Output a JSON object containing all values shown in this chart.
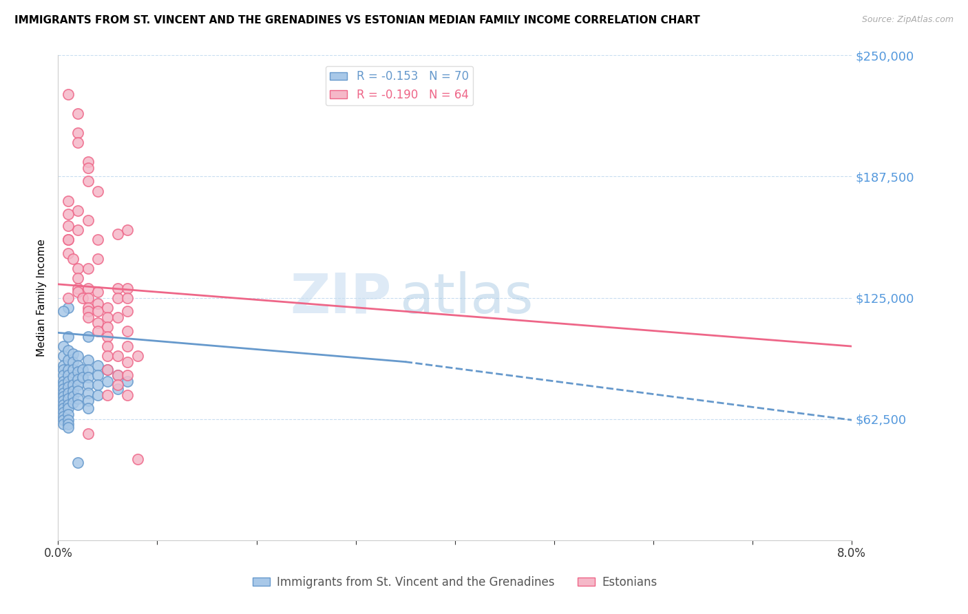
{
  "title": "IMMIGRANTS FROM ST. VINCENT AND THE GRENADINES VS ESTONIAN MEDIAN FAMILY INCOME CORRELATION CHART",
  "source": "Source: ZipAtlas.com",
  "ylabel": "Median Family Income",
  "xlim": [
    0.0,
    0.08
  ],
  "ylim": [
    0,
    250000
  ],
  "yticks": [
    0,
    62500,
    125000,
    187500,
    250000
  ],
  "ytick_labels": [
    "",
    "$62,500",
    "$125,000",
    "$187,500",
    "$250,000"
  ],
  "xticks": [
    0.0,
    0.01,
    0.02,
    0.03,
    0.04,
    0.05,
    0.06,
    0.07,
    0.08
  ],
  "xtick_labels": [
    "0.0%",
    "",
    "",
    "",
    "",
    "",
    "",
    "",
    "8.0%"
  ],
  "legend_blue_r": "R = -0.153",
  "legend_blue_n": "N = 70",
  "legend_pink_r": "R = -0.190",
  "legend_pink_n": "N = 64",
  "watermark_zip": "ZIP",
  "watermark_atlas": "atlas",
  "blue_color": "#a8c8e8",
  "pink_color": "#f5b8c8",
  "line_blue_color": "#6699cc",
  "line_pink_color": "#ee6688",
  "axis_label_color": "#5599dd",
  "blue_scatter": [
    [
      0.0005,
      100000
    ],
    [
      0.0005,
      95000
    ],
    [
      0.0005,
      90000
    ],
    [
      0.0005,
      88000
    ],
    [
      0.0005,
      85000
    ],
    [
      0.0005,
      82000
    ],
    [
      0.0005,
      80000
    ],
    [
      0.0005,
      78000
    ],
    [
      0.0005,
      76000
    ],
    [
      0.0005,
      74000
    ],
    [
      0.0005,
      72000
    ],
    [
      0.0005,
      70000
    ],
    [
      0.0005,
      68000
    ],
    [
      0.0005,
      66000
    ],
    [
      0.0005,
      64000
    ],
    [
      0.0005,
      62000
    ],
    [
      0.0005,
      60000
    ],
    [
      0.001,
      105000
    ],
    [
      0.001,
      98000
    ],
    [
      0.001,
      93000
    ],
    [
      0.001,
      88000
    ],
    [
      0.001,
      85000
    ],
    [
      0.001,
      82000
    ],
    [
      0.001,
      79000
    ],
    [
      0.001,
      76000
    ],
    [
      0.001,
      73000
    ],
    [
      0.001,
      70000
    ],
    [
      0.001,
      68000
    ],
    [
      0.001,
      65000
    ],
    [
      0.001,
      62000
    ],
    [
      0.001,
      60000
    ],
    [
      0.001,
      58000
    ],
    [
      0.0015,
      96000
    ],
    [
      0.0015,
      92000
    ],
    [
      0.0015,
      88000
    ],
    [
      0.0015,
      84000
    ],
    [
      0.0015,
      80000
    ],
    [
      0.0015,
      77000
    ],
    [
      0.0015,
      74000
    ],
    [
      0.0015,
      71000
    ],
    [
      0.002,
      95000
    ],
    [
      0.002,
      90000
    ],
    [
      0.002,
      87000
    ],
    [
      0.002,
      83000
    ],
    [
      0.002,
      80000
    ],
    [
      0.002,
      77000
    ],
    [
      0.002,
      73000
    ],
    [
      0.002,
      70000
    ],
    [
      0.0025,
      88000
    ],
    [
      0.0025,
      84000
    ],
    [
      0.003,
      93000
    ],
    [
      0.003,
      88000
    ],
    [
      0.003,
      84000
    ],
    [
      0.003,
      80000
    ],
    [
      0.003,
      76000
    ],
    [
      0.003,
      72000
    ],
    [
      0.003,
      68000
    ],
    [
      0.004,
      90000
    ],
    [
      0.004,
      85000
    ],
    [
      0.004,
      80000
    ],
    [
      0.004,
      75000
    ],
    [
      0.005,
      88000
    ],
    [
      0.005,
      82000
    ],
    [
      0.006,
      85000
    ],
    [
      0.006,
      78000
    ],
    [
      0.007,
      82000
    ],
    [
      0.002,
      40000
    ],
    [
      0.001,
      120000
    ],
    [
      0.0005,
      118000
    ],
    [
      0.003,
      105000
    ]
  ],
  "pink_scatter": [
    [
      0.001,
      230000
    ],
    [
      0.002,
      220000
    ],
    [
      0.002,
      210000
    ],
    [
      0.002,
      205000
    ],
    [
      0.003,
      195000
    ],
    [
      0.003,
      192000
    ],
    [
      0.003,
      185000
    ],
    [
      0.004,
      180000
    ],
    [
      0.002,
      170000
    ],
    [
      0.003,
      165000
    ],
    [
      0.002,
      160000
    ],
    [
      0.001,
      155000
    ],
    [
      0.001,
      148000
    ],
    [
      0.004,
      155000
    ],
    [
      0.004,
      145000
    ],
    [
      0.001,
      175000
    ],
    [
      0.001,
      168000
    ],
    [
      0.001,
      162000
    ],
    [
      0.001,
      155000
    ],
    [
      0.0015,
      145000
    ],
    [
      0.002,
      140000
    ],
    [
      0.002,
      135000
    ],
    [
      0.002,
      130000
    ],
    [
      0.002,
      128000
    ],
    [
      0.0025,
      125000
    ],
    [
      0.003,
      140000
    ],
    [
      0.003,
      130000
    ],
    [
      0.003,
      125000
    ],
    [
      0.003,
      120000
    ],
    [
      0.003,
      118000
    ],
    [
      0.003,
      115000
    ],
    [
      0.004,
      128000
    ],
    [
      0.004,
      122000
    ],
    [
      0.004,
      118000
    ],
    [
      0.004,
      112000
    ],
    [
      0.004,
      108000
    ],
    [
      0.005,
      120000
    ],
    [
      0.005,
      115000
    ],
    [
      0.005,
      110000
    ],
    [
      0.005,
      105000
    ],
    [
      0.005,
      100000
    ],
    [
      0.005,
      95000
    ],
    [
      0.005,
      88000
    ],
    [
      0.006,
      158000
    ],
    [
      0.006,
      130000
    ],
    [
      0.006,
      125000
    ],
    [
      0.006,
      115000
    ],
    [
      0.006,
      95000
    ],
    [
      0.006,
      85000
    ],
    [
      0.006,
      80000
    ],
    [
      0.007,
      160000
    ],
    [
      0.007,
      130000
    ],
    [
      0.007,
      125000
    ],
    [
      0.007,
      118000
    ],
    [
      0.007,
      108000
    ],
    [
      0.007,
      100000
    ],
    [
      0.007,
      92000
    ],
    [
      0.007,
      85000
    ],
    [
      0.003,
      55000
    ],
    [
      0.005,
      75000
    ],
    [
      0.007,
      75000
    ],
    [
      0.008,
      95000
    ],
    [
      0.008,
      42000
    ],
    [
      0.001,
      125000
    ]
  ],
  "blue_trend": [
    0.0,
    107000,
    0.035,
    92000
  ],
  "blue_trend_dashed": [
    0.035,
    92000,
    0.08,
    62000
  ],
  "pink_trend": [
    0.0,
    132000,
    0.08,
    100000
  ]
}
